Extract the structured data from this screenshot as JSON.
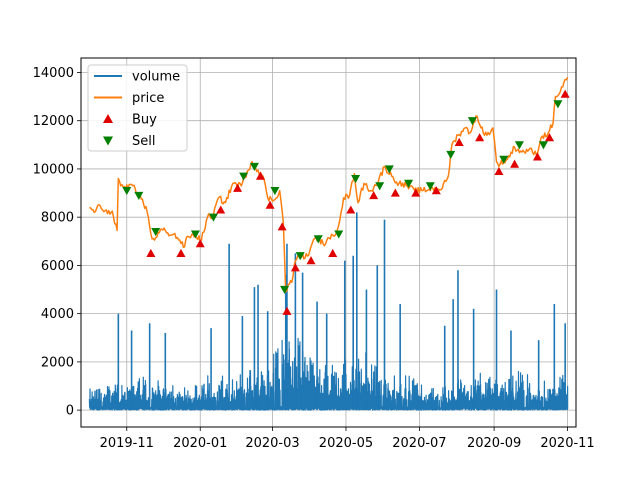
{
  "chart_data": {
    "type": "line",
    "title": "",
    "xlabel": "",
    "ylabel": "",
    "grid": true,
    "legend_position": "top-left",
    "x_start": "2019-10-01",
    "x_end": "2020-11-01",
    "ylim": [
      -700,
      14600
    ],
    "y_ticks": [
      0,
      2000,
      4000,
      6000,
      8000,
      10000,
      12000,
      14000
    ],
    "x_ticks": [
      {
        "date": "2019-11-01",
        "label": "2019-11"
      },
      {
        "date": "2020-01-01",
        "label": "2020-01"
      },
      {
        "date": "2020-03-01",
        "label": "2020-03"
      },
      {
        "date": "2020-05-01",
        "label": "2020-05"
      },
      {
        "date": "2020-07-01",
        "label": "2020-07"
      },
      {
        "date": "2020-09-01",
        "label": "2020-09"
      },
      {
        "date": "2020-11-01",
        "label": "2020-11"
      }
    ],
    "colors": {
      "volume": "#1f77b4",
      "price": "#ff7f0e",
      "buy": "#e00000",
      "sell": "#007f00"
    },
    "legend": [
      {
        "key": "volume",
        "label": "volume",
        "marker": "line"
      },
      {
        "key": "price",
        "label": "price",
        "marker": "line"
      },
      {
        "key": "buy",
        "label": "Buy",
        "marker": "triangle-up"
      },
      {
        "key": "sell",
        "label": "Sell",
        "marker": "triangle-down"
      }
    ],
    "price_series": [
      [
        "2019-10-01",
        8400
      ],
      [
        "2019-10-05",
        8200
      ],
      [
        "2019-10-08",
        8500
      ],
      [
        "2019-10-12",
        8300
      ],
      [
        "2019-10-16",
        8150
      ],
      [
        "2019-10-20",
        8250
      ],
      [
        "2019-10-24",
        7450
      ],
      [
        "2019-10-25",
        9600
      ],
      [
        "2019-10-27",
        9300
      ],
      [
        "2019-11-02",
        9200
      ],
      [
        "2019-11-06",
        9300
      ],
      [
        "2019-11-10",
        8900
      ],
      [
        "2019-11-14",
        8750
      ],
      [
        "2019-11-18",
        8200
      ],
      [
        "2019-11-22",
        7100
      ],
      [
        "2019-11-25",
        7150
      ],
      [
        "2019-11-30",
        7500
      ],
      [
        "2019-12-05",
        7350
      ],
      [
        "2019-12-10",
        7300
      ],
      [
        "2019-12-15",
        7050
      ],
      [
        "2019-12-18",
        6750
      ],
      [
        "2019-12-22",
        7200
      ],
      [
        "2019-12-28",
        7250
      ],
      [
        "2020-01-02",
        7050
      ],
      [
        "2020-01-07",
        8000
      ],
      [
        "2020-01-12",
        8100
      ],
      [
        "2020-01-16",
        8800
      ],
      [
        "2020-01-22",
        8600
      ],
      [
        "2020-01-28",
        9400
      ],
      [
        "2020-02-04",
        9300
      ],
      [
        "2020-02-09",
        9900
      ],
      [
        "2020-02-13",
        10300
      ],
      [
        "2020-02-18",
        9950
      ],
      [
        "2020-02-22",
        9700
      ],
      [
        "2020-02-26",
        8800
      ],
      [
        "2020-03-02",
        8700
      ],
      [
        "2020-03-07",
        9100
      ],
      [
        "2020-03-10",
        7800
      ],
      [
        "2020-03-12",
        4900
      ],
      [
        "2020-03-14",
        5200
      ],
      [
        "2020-03-17",
        5300
      ],
      [
        "2020-03-20",
        6200
      ],
      [
        "2020-03-24",
        6500
      ],
      [
        "2020-03-28",
        6300
      ],
      [
        "2020-04-01",
        6600
      ],
      [
        "2020-04-06",
        7200
      ],
      [
        "2020-04-12",
        6900
      ],
      [
        "2020-04-18",
        7100
      ],
      [
        "2020-04-24",
        7500
      ],
      [
        "2020-04-29",
        8800
      ],
      [
        "2020-05-04",
        8900
      ],
      [
        "2020-05-08",
        9800
      ],
      [
        "2020-05-11",
        8600
      ],
      [
        "2020-05-16",
        9400
      ],
      [
        "2020-05-22",
        9100
      ],
      [
        "2020-05-28",
        9500
      ],
      [
        "2020-06-02",
        10100
      ],
      [
        "2020-06-08",
        9700
      ],
      [
        "2020-06-14",
        9400
      ],
      [
        "2020-06-20",
        9300
      ],
      [
        "2020-06-27",
        9100
      ],
      [
        "2020-07-04",
        9100
      ],
      [
        "2020-07-12",
        9200
      ],
      [
        "2020-07-20",
        9200
      ],
      [
        "2020-07-25",
        9700
      ],
      [
        "2020-07-28",
        11000
      ],
      [
        "2020-08-02",
        11400
      ],
      [
        "2020-08-08",
        11700
      ],
      [
        "2020-08-12",
        11500
      ],
      [
        "2020-08-17",
        12200
      ],
      [
        "2020-08-21",
        11700
      ],
      [
        "2020-08-26",
        11400
      ],
      [
        "2020-08-31",
        11700
      ],
      [
        "2020-09-03",
        10300
      ],
      [
        "2020-09-06",
        10200
      ],
      [
        "2020-09-12",
        10400
      ],
      [
        "2020-09-18",
        10900
      ],
      [
        "2020-09-24",
        10700
      ],
      [
        "2020-09-30",
        10800
      ],
      [
        "2020-10-06",
        10600
      ],
      [
        "2020-10-10",
        11300
      ],
      [
        "2020-10-16",
        11500
      ],
      [
        "2020-10-20",
        11900
      ],
      [
        "2020-10-22",
        13000
      ],
      [
        "2020-10-26",
        13200
      ],
      [
        "2020-10-29",
        13600
      ],
      [
        "2020-11-01",
        13800
      ]
    ],
    "buy_points": [
      [
        "2019-11-21",
        6500
      ],
      [
        "2019-12-16",
        6500
      ],
      [
        "2020-01-01",
        6900
      ],
      [
        "2020-01-18",
        8300
      ],
      [
        "2020-02-01",
        9200
      ],
      [
        "2020-02-20",
        9700
      ],
      [
        "2020-02-28",
        8500
      ],
      [
        "2020-03-09",
        7600
      ],
      [
        "2020-03-13",
        4100
      ],
      [
        "2020-03-20",
        5900
      ],
      [
        "2020-04-02",
        6200
      ],
      [
        "2020-04-20",
        6500
      ],
      [
        "2020-05-05",
        8300
      ],
      [
        "2020-05-24",
        8900
      ],
      [
        "2020-06-11",
        9000
      ],
      [
        "2020-06-28",
        9000
      ],
      [
        "2020-07-15",
        9100
      ],
      [
        "2020-08-03",
        11100
      ],
      [
        "2020-08-20",
        11300
      ],
      [
        "2020-09-05",
        9900
      ],
      [
        "2020-09-18",
        10200
      ],
      [
        "2020-10-07",
        10500
      ],
      [
        "2020-10-17",
        11300
      ],
      [
        "2020-10-30",
        13100
      ]
    ],
    "sell_points": [
      [
        "2019-11-01",
        9100
      ],
      [
        "2019-11-11",
        8900
      ],
      [
        "2019-11-25",
        7400
      ],
      [
        "2019-12-28",
        7300
      ],
      [
        "2020-01-12",
        8000
      ],
      [
        "2020-02-06",
        9700
      ],
      [
        "2020-02-15",
        10100
      ],
      [
        "2020-03-03",
        9100
      ],
      [
        "2020-03-11",
        5000
      ],
      [
        "2020-03-24",
        6400
      ],
      [
        "2020-04-08",
        7100
      ],
      [
        "2020-04-25",
        7300
      ],
      [
        "2020-05-09",
        9600
      ],
      [
        "2020-05-29",
        9300
      ],
      [
        "2020-06-06",
        10000
      ],
      [
        "2020-06-22",
        9400
      ],
      [
        "2020-07-10",
        9300
      ],
      [
        "2020-07-27",
        10600
      ],
      [
        "2020-08-14",
        12000
      ],
      [
        "2020-09-09",
        10400
      ],
      [
        "2020-09-22",
        11000
      ],
      [
        "2020-10-12",
        11000
      ],
      [
        "2020-10-24",
        12700
      ]
    ],
    "volume_profile": {
      "start": "2019-10-01",
      "end": "2020-11-01",
      "step_hours": 6,
      "baseline_by_month": [
        [
          "2019-10",
          900
        ],
        [
          "2019-11",
          1100
        ],
        [
          "2019-12",
          900
        ],
        [
          "2020-01",
          1100
        ],
        [
          "2020-02",
          1400
        ],
        [
          "2020-03",
          2400
        ],
        [
          "2020-04",
          1700
        ],
        [
          "2020-05",
          1800
        ],
        [
          "2020-06",
          1200
        ],
        [
          "2020-07",
          900
        ],
        [
          "2020-08",
          1300
        ],
        [
          "2020-09",
          1300
        ],
        [
          "2020-10",
          1100
        ]
      ],
      "spikes": [
        [
          "2019-10-25",
          4000
        ],
        [
          "2019-11-05",
          3300
        ],
        [
          "2019-11-20",
          3600
        ],
        [
          "2019-12-03",
          3200
        ],
        [
          "2020-01-10",
          3400
        ],
        [
          "2020-01-25",
          6900
        ],
        [
          "2020-02-05",
          3900
        ],
        [
          "2020-02-15",
          5100
        ],
        [
          "2020-02-18",
          5200
        ],
        [
          "2020-02-26",
          4100
        ],
        [
          "2020-03-12",
          5600
        ],
        [
          "2020-03-13",
          6900
        ],
        [
          "2020-03-20",
          6500
        ],
        [
          "2020-03-26",
          5700
        ],
        [
          "2020-04-07",
          4500
        ],
        [
          "2020-04-15",
          4000
        ],
        [
          "2020-04-30",
          6200
        ],
        [
          "2020-05-07",
          6400
        ],
        [
          "2020-05-10",
          8200
        ],
        [
          "2020-05-18",
          5000
        ],
        [
          "2020-05-27",
          6000
        ],
        [
          "2020-06-02",
          7900
        ],
        [
          "2020-06-15",
          4400
        ],
        [
          "2020-07-22",
          3500
        ],
        [
          "2020-07-29",
          4600
        ],
        [
          "2020-08-02",
          5800
        ],
        [
          "2020-08-15",
          4200
        ],
        [
          "2020-09-03",
          5000
        ],
        [
          "2020-09-15",
          3300
        ],
        [
          "2020-10-08",
          2900
        ],
        [
          "2020-10-21",
          4400
        ],
        [
          "2020-10-30",
          3600
        ]
      ]
    }
  }
}
